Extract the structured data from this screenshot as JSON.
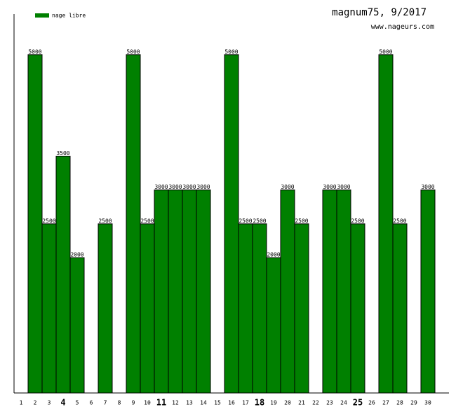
{
  "chart_data": {
    "type": "bar",
    "title": "magnum75, 9/2017",
    "subtitle": "www.nageurs.com",
    "categories": [
      "1",
      "2",
      "3",
      "4",
      "5",
      "6",
      "7",
      "8",
      "9",
      "10",
      "11",
      "12",
      "13",
      "14",
      "15",
      "16",
      "17",
      "18",
      "19",
      "20",
      "21",
      "22",
      "23",
      "24",
      "25",
      "26",
      "27",
      "28",
      "29",
      "30"
    ],
    "series": [
      {
        "name": "nage libre",
        "color": "#008000",
        "values": [
          null,
          5000,
          2500,
          3500,
          2000,
          null,
          2500,
          null,
          5000,
          2500,
          3000,
          3000,
          3000,
          3000,
          null,
          5000,
          2500,
          2500,
          2000,
          3000,
          2500,
          null,
          3000,
          3000,
          2500,
          null,
          5000,
          2500,
          null,
          3000
        ]
      }
    ],
    "ylim": [
      0,
      5600
    ],
    "legend": "top-left"
  }
}
